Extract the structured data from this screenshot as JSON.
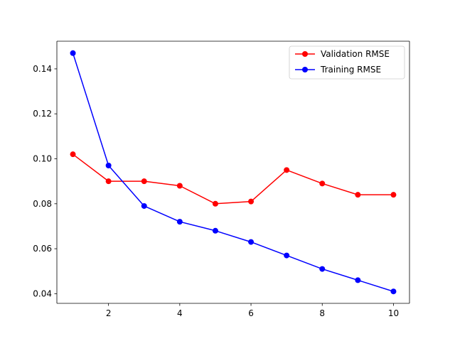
{
  "chart_data": {
    "type": "line",
    "title": "",
    "xlabel": "",
    "ylabel": "",
    "x": [
      1,
      2,
      3,
      4,
      5,
      6,
      7,
      8,
      9,
      10
    ],
    "xlim": [
      0.55,
      10.45
    ],
    "ylim": [
      0.0357,
      0.1523
    ],
    "xticks": [
      2,
      4,
      6,
      8,
      10
    ],
    "yticks": [
      0.04,
      0.06,
      0.08,
      0.1,
      0.12,
      0.14
    ],
    "xtick_labels": [
      "2",
      "4",
      "6",
      "8",
      "10"
    ],
    "ytick_labels": [
      "0.04",
      "0.06",
      "0.08",
      "0.10",
      "0.12",
      "0.14"
    ],
    "grid": false,
    "legend_position": "top-right",
    "series": [
      {
        "name": "Validation RMSE",
        "color": "#ff0000",
        "marker": "circle",
        "values": [
          0.102,
          0.09,
          0.09,
          0.088,
          0.08,
          0.081,
          0.095,
          0.089,
          0.084,
          0.084
        ]
      },
      {
        "name": "Training RMSE",
        "color": "#0000ff",
        "marker": "circle",
        "values": [
          0.147,
          0.097,
          0.079,
          0.072,
          0.068,
          0.063,
          0.057,
          0.051,
          0.046,
          0.041
        ]
      }
    ]
  }
}
